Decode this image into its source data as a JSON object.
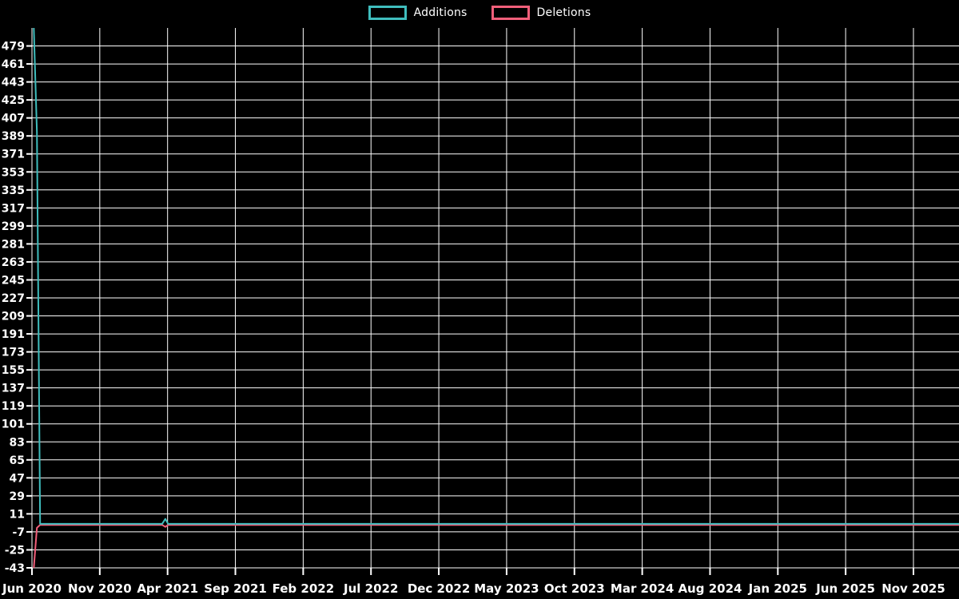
{
  "page": {
    "background_color": "#000000"
  },
  "legend": {
    "position": "top-center",
    "items": [
      {
        "label": "Additions",
        "color": "#3fbdbd"
      },
      {
        "label": "Deletions",
        "color": "#f25f7a"
      }
    ]
  },
  "chart_data": {
    "type": "line",
    "title": "",
    "xlabel": "",
    "ylabel": "",
    "grid": "on",
    "legend_position": "top-center",
    "background_color": "#000000",
    "grid_color": "#ffffff",
    "text_color": "#ffffff",
    "x_axis": {
      "start_month": "2020-06",
      "months_span": 65,
      "tick_month_offsets": [
        0,
        5,
        10,
        15,
        20,
        25,
        30,
        35,
        40,
        45,
        50,
        55,
        60,
        65
      ],
      "tick_labels": [
        "Jun 2020",
        "Nov 2020",
        "Apr 2021",
        "Sep 2021",
        "Feb 2022",
        "Jul 2022",
        "Dec 2022",
        "May 2023",
        "Oct 2023",
        "Mar 2024",
        "Aug 2024",
        "Jan 2025",
        "Jun 2025",
        "Nov 2025"
      ]
    },
    "y_axis": {
      "ylim": [
        -43,
        497
      ],
      "tick_step": 18,
      "tick_values": [
        479,
        461,
        443,
        425,
        407,
        389,
        371,
        353,
        335,
        317,
        299,
        281,
        263,
        245,
        227,
        209,
        191,
        173,
        155,
        137,
        119,
        101,
        83,
        65,
        47,
        29,
        11,
        -7,
        -25,
        -43
      ]
    },
    "series": [
      {
        "name": "Additions",
        "color": "#3fbdbd",
        "points": [
          [
            "2020-06-05",
            497
          ],
          [
            "2020-06-12",
            393
          ],
          [
            "2020-06-19",
            1
          ],
          [
            "2021-03-19",
            1
          ],
          [
            "2021-03-26",
            6
          ],
          [
            "2021-04-02",
            1
          ],
          [
            "2026-02-15",
            1
          ]
        ]
      },
      {
        "name": "Deletions",
        "color": "#f25f7a",
        "points": [
          [
            "2020-06-05",
            -43
          ],
          [
            "2020-06-12",
            -3
          ],
          [
            "2020-06-19",
            0
          ],
          [
            "2021-03-19",
            0
          ],
          [
            "2021-03-26",
            -2
          ],
          [
            "2021-04-02",
            0
          ],
          [
            "2026-02-15",
            0
          ]
        ]
      }
    ]
  }
}
